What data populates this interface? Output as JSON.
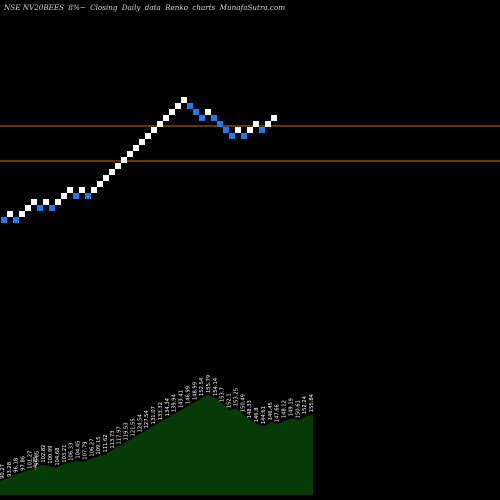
{
  "header": {
    "ticker": "NSE NV20BEES",
    "change": "8%~",
    "text1": "Closing",
    "text2": "Daily",
    "text3": "data",
    "chart_kind": "Renko",
    "text4": "charts",
    "site": "MunafaSutra.com"
  },
  "colors": {
    "background": "#000000",
    "up_brick": "#ffffff",
    "down_brick": "#1e7cf0",
    "reference_line": "#c86a14",
    "volume_fill": "#063a06",
    "label_color": "#ffffff"
  },
  "chart_data": {
    "type": "renko",
    "brick_directions": [
      "down",
      "up",
      "down",
      "up",
      "up",
      "up",
      "down",
      "up",
      "down",
      "up",
      "up",
      "up",
      "down",
      "up",
      "down",
      "up",
      "up",
      "up",
      "up",
      "up",
      "up",
      "up",
      "up",
      "up",
      "up",
      "up",
      "up",
      "up",
      "up",
      "up",
      "up",
      "down",
      "down",
      "down",
      "up",
      "down",
      "down",
      "down",
      "down",
      "up",
      "down",
      "up",
      "up",
      "down",
      "up",
      "up"
    ],
    "reference_levels": [
      "upper",
      "lower"
    ],
    "volume_labels": [
      "90.27",
      "93.28",
      "96.18",
      "97.86",
      "101.27",
      "99.85",
      "102.82",
      "100.99",
      "104.68",
      "103.21",
      "106.33",
      "104.45",
      "107.79",
      "106.27",
      "109.15",
      "111.62",
      "113.73",
      "117.97",
      "119.53",
      "121.55",
      "124.54",
      "127.54",
      "131.07",
      "133.32",
      "134.34",
      "139.94",
      "143.41",
      "146.99",
      "148.99",
      "152.54",
      "155.79",
      "154.14",
      "153.7",
      "152.1",
      "153.25",
      "150.49",
      "148.33",
      "146.8",
      "144.61",
      "146.45",
      "147.66",
      "148.12",
      "149.19",
      "150.61",
      "152.24",
      "155.84"
    ],
    "volume_values": [
      14,
      16,
      20,
      22,
      24,
      27,
      30,
      29,
      27,
      30,
      32,
      34,
      33,
      36,
      38,
      40,
      44,
      48,
      52,
      56,
      60,
      64,
      68,
      72,
      76,
      80,
      84,
      88,
      92,
      96,
      99,
      96,
      90,
      84,
      86,
      80,
      74,
      70,
      68,
      72,
      70,
      74,
      76,
      74,
      78,
      80
    ],
    "neg_label": "-4.75"
  }
}
